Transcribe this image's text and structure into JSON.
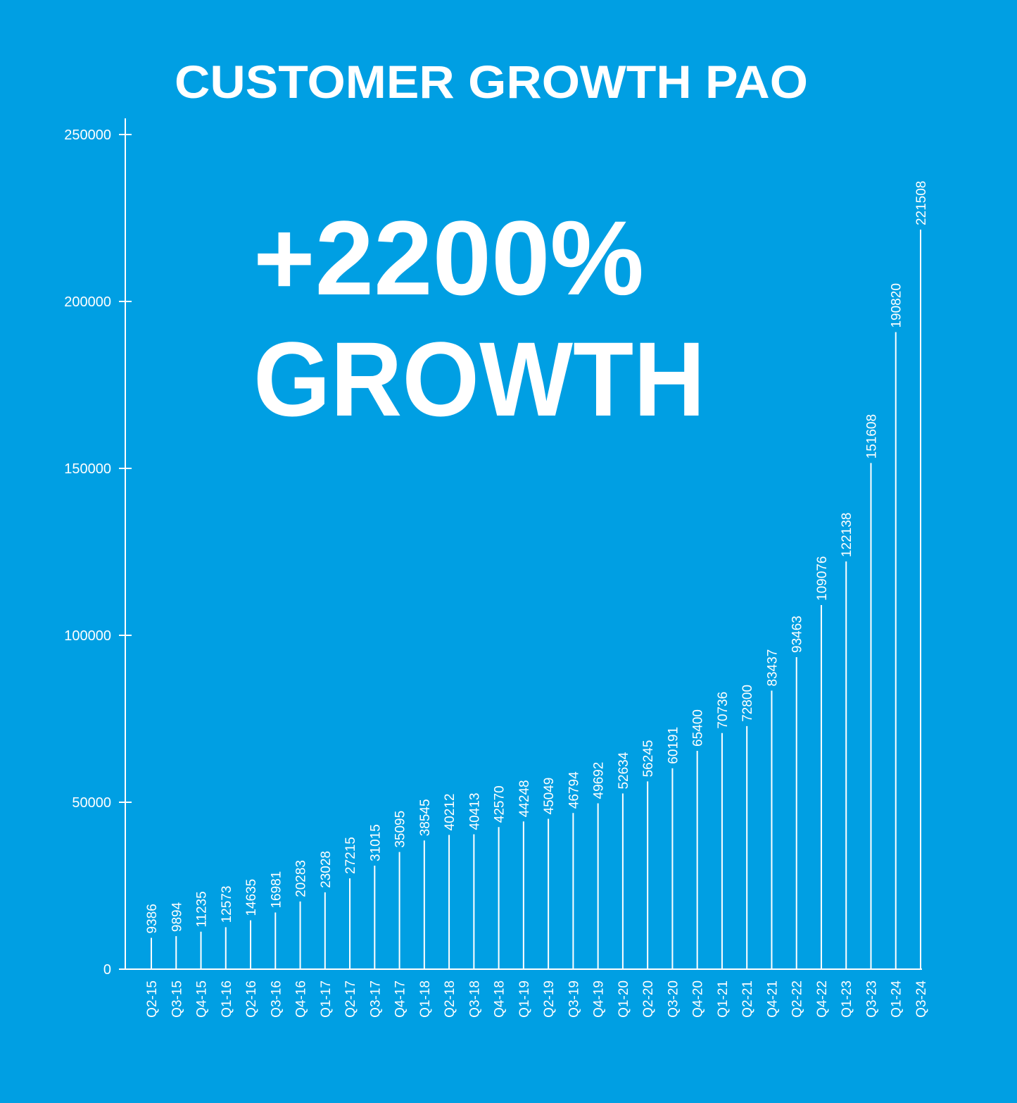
{
  "chart_data": {
    "type": "stem",
    "title": "CUSTOMER GROWTH PAO",
    "annotations": [
      "+2200%",
      "GROWTH"
    ],
    "categories": [
      "Q2-15",
      "Q3-15",
      "Q4-15",
      "Q1-16",
      "Q2-16",
      "Q3-16",
      "Q4-16",
      "Q1-17",
      "Q2-17",
      "Q3-17",
      "Q4-17",
      "Q1-18",
      "Q2-18",
      "Q3-18",
      "Q4-18",
      "Q1-19",
      "Q2-19",
      "Q3-19",
      "Q4-19",
      "Q1-20",
      "Q2-20",
      "Q3-20",
      "Q4-20",
      "Q1-21",
      "Q2-21",
      "Q4-21",
      "Q2-22",
      "Q4-22",
      "Q1-23",
      "Q3-23",
      "Q1-24",
      "Q3-24"
    ],
    "values": [
      9386,
      9894,
      11235,
      12573,
      14635,
      16981,
      20283,
      23028,
      27215,
      31015,
      35095,
      38545,
      40212,
      40413,
      42570,
      44248,
      45049,
      46794,
      49692,
      52634,
      56245,
      60191,
      65400,
      70736,
      72800,
      83437,
      93463,
      109076,
      122138,
      151608,
      190820,
      221508
    ],
    "color": "#ffffff",
    "ylim": [
      0,
      250000
    ],
    "yticks": [
      0,
      50000,
      100000,
      150000,
      200000,
      250000
    ],
    "grid": false
  }
}
